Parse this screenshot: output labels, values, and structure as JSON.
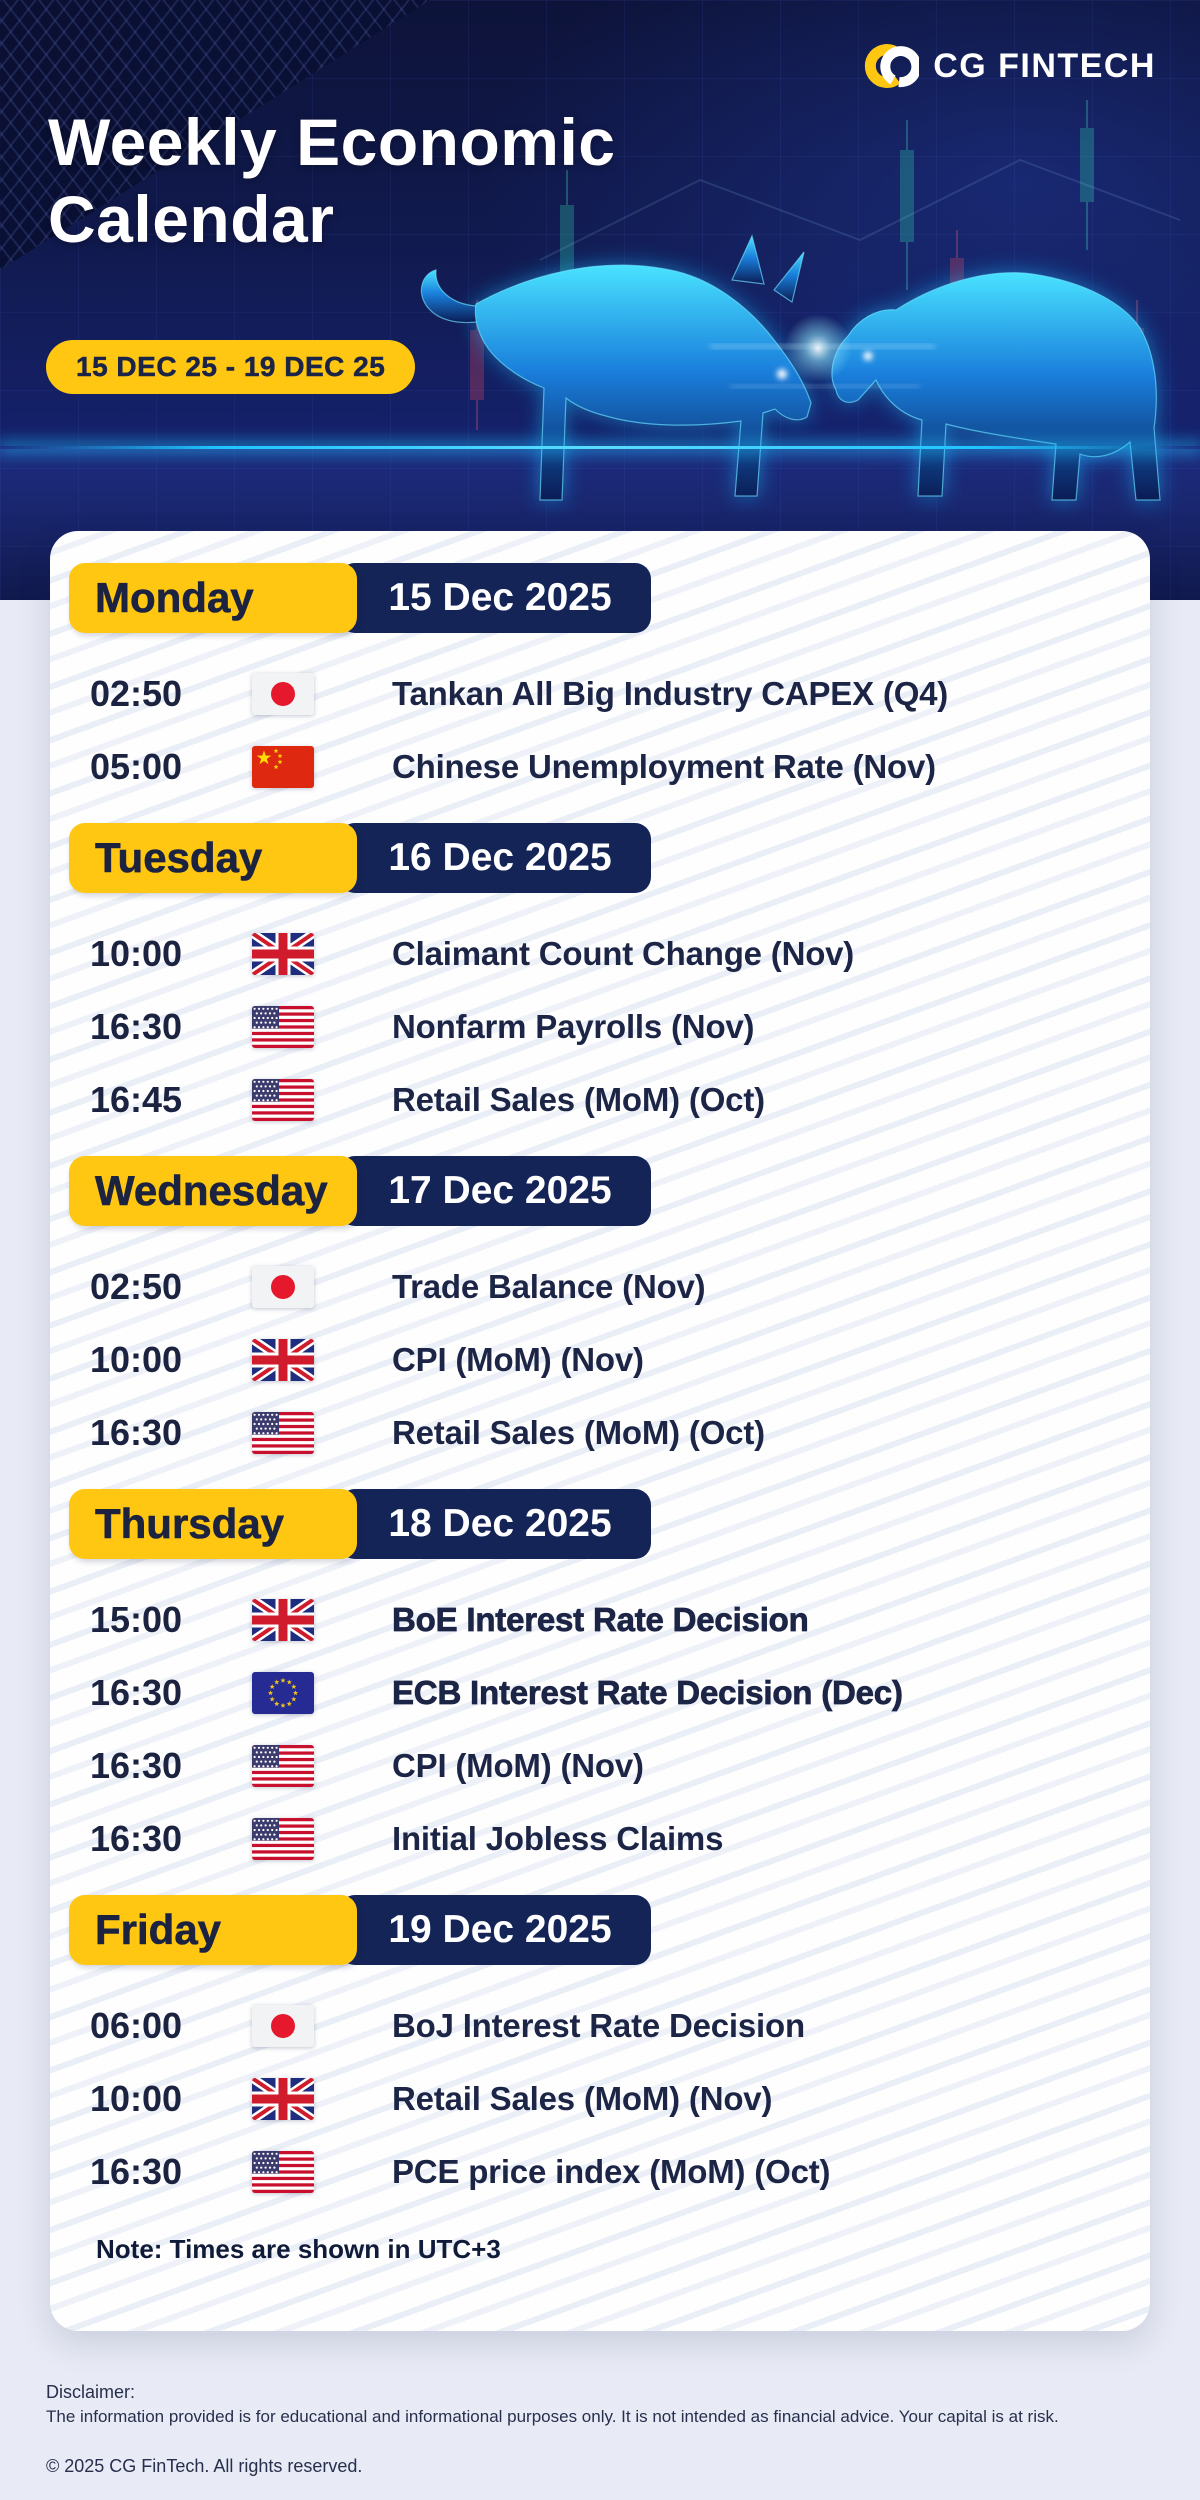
{
  "brand": {
    "name": "CG FINTECH"
  },
  "header": {
    "title_line1": "Weekly Economic",
    "title_line2": "Calendar",
    "date_range": "15 DEC 25 - 19 DEC 25"
  },
  "calendar": {
    "days": [
      {
        "name": "Monday",
        "date": "15 Dec 2025",
        "events": [
          {
            "time": "02:50",
            "country": "japan",
            "title": "Tankan All Big Industry CAPEX (Q4)",
            "bold": false
          },
          {
            "time": "05:00",
            "country": "china",
            "title": "Chinese Unemployment Rate (Nov)",
            "bold": false
          }
        ]
      },
      {
        "name": "Tuesday",
        "date": "16 Dec 2025",
        "events": [
          {
            "time": "10:00",
            "country": "uk",
            "title": "Claimant Count Change (Nov)",
            "bold": false
          },
          {
            "time": "16:30",
            "country": "us",
            "title": "Nonfarm Payrolls (Nov)",
            "bold": false
          },
          {
            "time": "16:45",
            "country": "us",
            "title": "Retail Sales (MoM) (Oct)",
            "bold": false
          }
        ]
      },
      {
        "name": "Wednesday",
        "date": "17 Dec 2025",
        "events": [
          {
            "time": "02:50",
            "country": "japan",
            "title": "Trade Balance (Nov)",
            "bold": false
          },
          {
            "time": "10:00",
            "country": "uk",
            "title": "CPI (MoM) (Nov)",
            "bold": false
          },
          {
            "time": "16:30",
            "country": "us",
            "title": "Retail Sales (MoM) (Oct)",
            "bold": false
          }
        ]
      },
      {
        "name": "Thursday",
        "date": "18 Dec 2025",
        "events": [
          {
            "time": "15:00",
            "country": "uk",
            "title": "BoE Interest Rate Decision",
            "bold": true
          },
          {
            "time": "16:30",
            "country": "eu",
            "title": "ECB Interest Rate Decision (Dec)",
            "bold": true
          },
          {
            "time": "16:30",
            "country": "us",
            "title": "CPI (MoM) (Nov)",
            "bold": false
          },
          {
            "time": "16:30",
            "country": "us",
            "title": "Initial Jobless Claims",
            "bold": false
          }
        ]
      },
      {
        "name": "Friday",
        "date": "19 Dec 2025",
        "events": [
          {
            "time": "06:00",
            "country": "japan",
            "title": "BoJ Interest Rate Decision",
            "bold": false
          },
          {
            "time": "10:00",
            "country": "uk",
            "title": "Retail Sales (MoM) (Nov)",
            "bold": false
          },
          {
            "time": "16:30",
            "country": "us",
            "title": "PCE price index (MoM) (Oct)",
            "bold": false
          }
        ]
      }
    ],
    "note": "Note: Times are shown in UTC+3"
  },
  "footer": {
    "disclaimer_label": "Disclaimer:",
    "disclaimer_text": "The information provided is for educational and informational purposes only. It is not intended as financial advice. Your capital is at risk.",
    "copyright": "© 2025 CG FinTech. All rights reserved."
  },
  "colors": {
    "accent_yellow": "#ffc712",
    "navy_badge": "#152457",
    "hero_navy": "#111a4e",
    "cyan_glow": "#1fc3ff",
    "card_bg": "#f4f6fa",
    "footer_bg": "#e8ebf5",
    "text_navy": "#1b2340"
  }
}
